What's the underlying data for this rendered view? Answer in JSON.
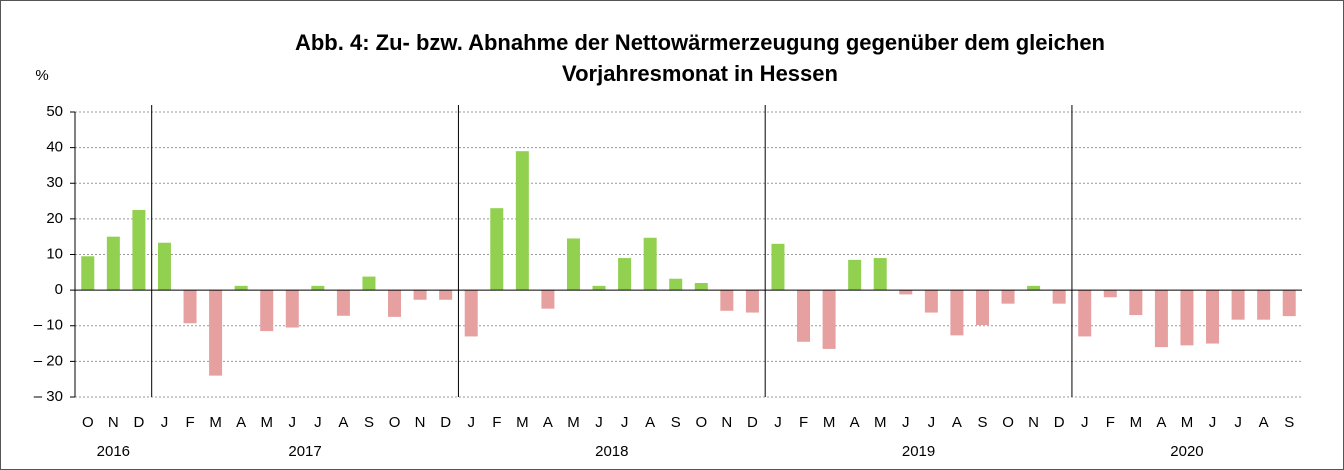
{
  "chart_data": {
    "type": "bar",
    "title": [
      "Abb. 4: Zu- bzw. Abnahme der Nettowärmerzeugung gegenüber dem gleichen",
      "Vorjahresmonat in Hessen"
    ],
    "y_label": "%",
    "groups": [
      {
        "name": "2016",
        "months": [
          "O",
          "N",
          "D"
        ]
      },
      {
        "name": "2017",
        "months": [
          "J",
          "F",
          "M",
          "A",
          "M",
          "J",
          "J",
          "A",
          "S",
          "O",
          "N",
          "D"
        ]
      },
      {
        "name": "2018",
        "months": [
          "J",
          "F",
          "M",
          "A",
          "M",
          "J",
          "J",
          "A",
          "S",
          "O",
          "N",
          "D"
        ]
      },
      {
        "name": "2019",
        "months": [
          "J",
          "F",
          "M",
          "A",
          "M",
          "J",
          "J",
          "A",
          "S",
          "O",
          "N",
          "D"
        ]
      },
      {
        "name": "2020",
        "months": [
          "J",
          "F",
          "M",
          "A",
          "M",
          "J",
          "J",
          "A",
          "S"
        ]
      }
    ],
    "values": [
      9.5,
      15,
      22.5,
      13.3,
      -9.3,
      -24,
      1.2,
      -11.5,
      -10.5,
      1.2,
      -7.2,
      3.8,
      -7.5,
      -2.7,
      -2.7,
      -13,
      23,
      39,
      -5.2,
      14.5,
      1.2,
      9,
      14.7,
      3.2,
      2,
      -5.8,
      -6.3,
      13,
      -14.5,
      -16.5,
      8.5,
      9,
      -1.2,
      -6.3,
      -12.7,
      -9.8,
      -3.8,
      1.2,
      -3.8,
      -13,
      -2,
      -7,
      -16,
      -15.5,
      -15,
      -8.3,
      -8.3,
      -7.3
    ],
    "color_positive": "#92d050",
    "color_negative": "#e6a0a0",
    "ylim": [
      -30,
      50
    ],
    "yticks": [
      {
        "value": -30,
        "label": "– 30"
      },
      {
        "value": -20,
        "label": "– 20"
      },
      {
        "value": -10,
        "label": "– 10"
      },
      0,
      10,
      20,
      30,
      40,
      50
    ],
    "grid": true
  }
}
